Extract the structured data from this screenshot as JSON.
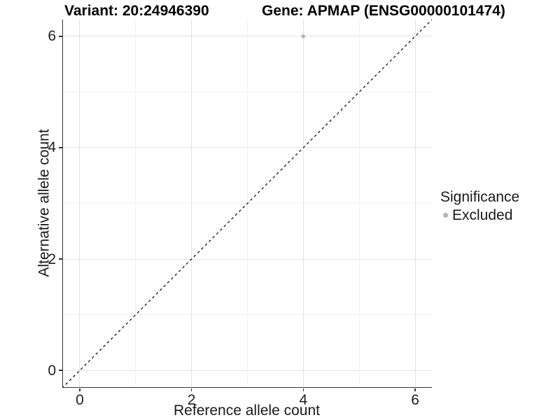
{
  "chart_data": {
    "type": "scatter",
    "title_left": "Variant: 20:24946390",
    "title_right": "Gene: APMAP (ENSG00000101474)",
    "xlabel": "Reference allele count",
    "ylabel": "Alternative allele count",
    "xlim": [
      -0.3,
      6.3
    ],
    "ylim": [
      -0.3,
      6.3
    ],
    "x_ticks": [
      0,
      2,
      4,
      6
    ],
    "y_ticks": [
      0,
      2,
      4,
      6
    ],
    "x_tick_labels": [
      "0",
      "2",
      "4",
      "6"
    ],
    "y_tick_labels": [
      "0",
      "2",
      "4",
      "6"
    ],
    "grid": true,
    "minor_grid_step": 1,
    "points": [
      {
        "x": 4,
        "y": 6,
        "series": "Excluded"
      }
    ],
    "reference_line": {
      "kind": "identity",
      "style": "dashed",
      "from": [
        -0.32,
        -0.32
      ],
      "to": [
        6.38,
        6.38
      ]
    },
    "legend": {
      "title": "Significance",
      "position": "right",
      "items": [
        {
          "label": "Excluded",
          "color": "#b2b2b2"
        }
      ]
    },
    "colors": {
      "point": "#b2b2b2",
      "grid_major": "#e2e2e2",
      "grid_minor": "#efefef",
      "axis_line": "#333333",
      "reference_line": "#141414",
      "text": "#1a1a1a"
    }
  }
}
